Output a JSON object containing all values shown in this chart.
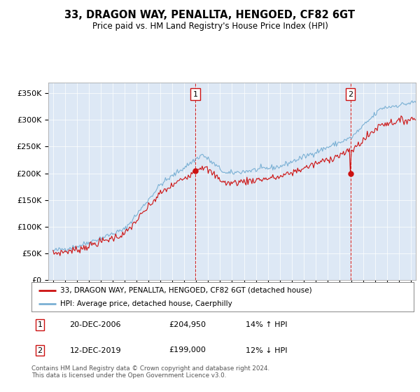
{
  "title": "33, DRAGON WAY, PENALLTA, HENGOED, CF82 6GT",
  "subtitle": "Price paid vs. HM Land Registry's House Price Index (HPI)",
  "legend_label_red": "33, DRAGON WAY, PENALLTA, HENGOED, CF82 6GT (detached house)",
  "legend_label_blue": "HPI: Average price, detached house, Caerphilly",
  "marker1_date": "20-DEC-2006",
  "marker1_price": "£204,950",
  "marker1_hpi": "14% ↑ HPI",
  "marker2_date": "12-DEC-2019",
  "marker2_price": "£199,000",
  "marker2_hpi": "12% ↓ HPI",
  "footer": "Contains HM Land Registry data © Crown copyright and database right 2024.\nThis data is licensed under the Open Government Licence v3.0.",
  "ylim": [
    0,
    370000
  ],
  "yticks": [
    0,
    50000,
    100000,
    150000,
    200000,
    250000,
    300000,
    350000
  ],
  "background_color": "#dde8f5",
  "red_color": "#cc1111",
  "blue_color": "#7ab0d4",
  "year_start": 1995,
  "year_end": 2025
}
